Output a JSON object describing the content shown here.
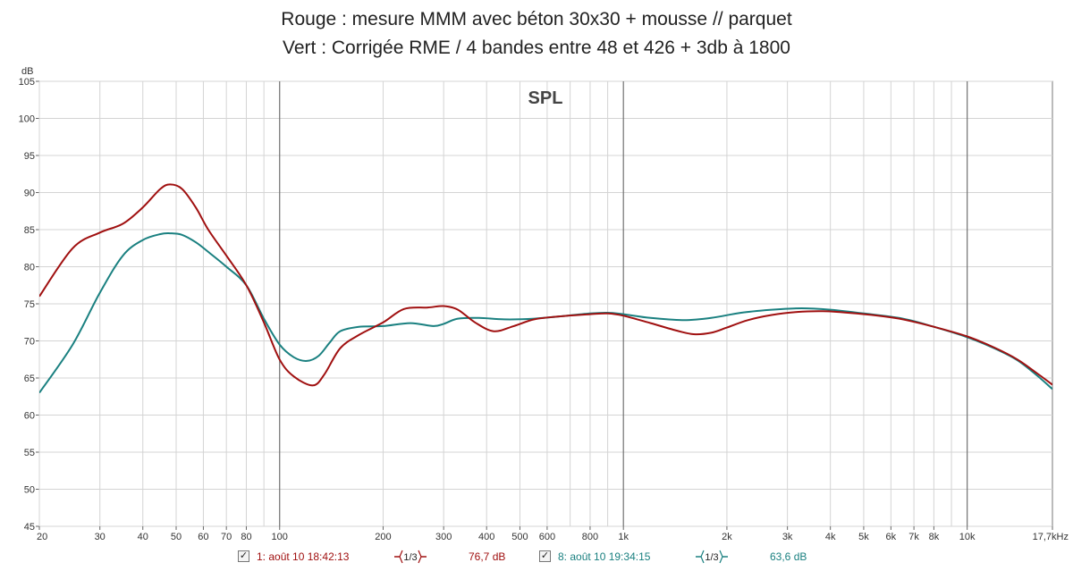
{
  "title_line1": "Rouge : mesure MMM avec béton 30x30 + mousse // parquet",
  "title_line2": "Vert : Corrigée RME / 4 bandes entre 48 et 426 + 3db à 1800",
  "chart_data": {
    "type": "line",
    "plot_label": "SPL",
    "ylabel": "dB",
    "xscale": "log",
    "xlim": [
      20,
      17700
    ],
    "ylim": [
      45,
      105
    ],
    "y_ticks": [
      "45",
      "50",
      "55",
      "60",
      "65",
      "70",
      "75",
      "80",
      "85",
      "90",
      "95",
      "100",
      "105"
    ],
    "x_ticks": [
      {
        "v": 20,
        "label": "20"
      },
      {
        "v": 30,
        "label": "30"
      },
      {
        "v": 40,
        "label": "40"
      },
      {
        "v": 50,
        "label": "50"
      },
      {
        "v": 60,
        "label": "60"
      },
      {
        "v": 70,
        "label": "70"
      },
      {
        "v": 80,
        "label": "80"
      },
      {
        "v": 100,
        "label": "100"
      },
      {
        "v": 200,
        "label": "200"
      },
      {
        "v": 300,
        "label": "300"
      },
      {
        "v": 400,
        "label": "400"
      },
      {
        "v": 500,
        "label": "500"
      },
      {
        "v": 600,
        "label": "600"
      },
      {
        "v": 800,
        "label": "800"
      },
      {
        "v": 1000,
        "label": "1k"
      },
      {
        "v": 2000,
        "label": "2k"
      },
      {
        "v": 3000,
        "label": "3k"
      },
      {
        "v": 4000,
        "label": "4k"
      },
      {
        "v": 5000,
        "label": "5k"
      },
      {
        "v": 6000,
        "label": "6k"
      },
      {
        "v": 7000,
        "label": "7k"
      },
      {
        "v": 8000,
        "label": "8k"
      },
      {
        "v": 10000,
        "label": "10k"
      },
      {
        "v": 17700,
        "label": "17,7kHz"
      }
    ],
    "series": [
      {
        "name": "1: août 10 18:42:13",
        "color": "#a01010",
        "smoothing": "1/3",
        "level": "76,7 dB",
        "points": [
          [
            20,
            76
          ],
          [
            25,
            82.5
          ],
          [
            30,
            84.6
          ],
          [
            35,
            85.8
          ],
          [
            40,
            88
          ],
          [
            45,
            90.5
          ],
          [
            48,
            91.1
          ],
          [
            52,
            90.5
          ],
          [
            57,
            88
          ],
          [
            62,
            85
          ],
          [
            70,
            81.5
          ],
          [
            80,
            77.5
          ],
          [
            90,
            72.5
          ],
          [
            100,
            67.5
          ],
          [
            110,
            65.2
          ],
          [
            125,
            64
          ],
          [
            135,
            65.5
          ],
          [
            150,
            69
          ],
          [
            170,
            70.8
          ],
          [
            200,
            72.5
          ],
          [
            230,
            74.3
          ],
          [
            270,
            74.5
          ],
          [
            300,
            74.7
          ],
          [
            330,
            74.2
          ],
          [
            370,
            72.5
          ],
          [
            420,
            71.3
          ],
          [
            480,
            72
          ],
          [
            550,
            72.9
          ],
          [
            650,
            73.3
          ],
          [
            800,
            73.6
          ],
          [
            900,
            73.7
          ],
          [
            1000,
            73.4
          ],
          [
            1200,
            72.4
          ],
          [
            1400,
            71.5
          ],
          [
            1600,
            70.9
          ],
          [
            1800,
            71.1
          ],
          [
            2000,
            71.8
          ],
          [
            2300,
            72.8
          ],
          [
            2700,
            73.5
          ],
          [
            3200,
            73.9
          ],
          [
            3800,
            74
          ],
          [
            4500,
            73.8
          ],
          [
            5500,
            73.4
          ],
          [
            6500,
            72.9
          ],
          [
            8000,
            71.9
          ],
          [
            10000,
            70.6
          ],
          [
            12000,
            69.1
          ],
          [
            14000,
            67.5
          ],
          [
            16000,
            65.6
          ],
          [
            17700,
            64.1
          ]
        ]
      },
      {
        "name": "8: août 10 19:34:15",
        "color": "#1a8080",
        "smoothing": "1/3",
        "level": "63,6 dB",
        "points": [
          [
            20,
            63
          ],
          [
            25,
            69.5
          ],
          [
            30,
            76.5
          ],
          [
            35,
            81.5
          ],
          [
            40,
            83.6
          ],
          [
            45,
            84.4
          ],
          [
            48,
            84.5
          ],
          [
            52,
            84.3
          ],
          [
            57,
            83.3
          ],
          [
            62,
            82
          ],
          [
            70,
            80
          ],
          [
            80,
            77.5
          ],
          [
            90,
            73
          ],
          [
            100,
            69.5
          ],
          [
            110,
            67.8
          ],
          [
            120,
            67.3
          ],
          [
            130,
            68
          ],
          [
            140,
            69.8
          ],
          [
            150,
            71.3
          ],
          [
            170,
            71.9
          ],
          [
            200,
            72
          ],
          [
            240,
            72.4
          ],
          [
            280,
            72
          ],
          [
            300,
            72.3
          ],
          [
            330,
            73
          ],
          [
            380,
            73.1
          ],
          [
            450,
            72.9
          ],
          [
            550,
            73
          ],
          [
            650,
            73.3
          ],
          [
            800,
            73.7
          ],
          [
            900,
            73.8
          ],
          [
            1000,
            73.6
          ],
          [
            1200,
            73.1
          ],
          [
            1500,
            72.8
          ],
          [
            1800,
            73.1
          ],
          [
            2200,
            73.8
          ],
          [
            2700,
            74.2
          ],
          [
            3300,
            74.4
          ],
          [
            4000,
            74.2
          ],
          [
            5000,
            73.7
          ],
          [
            6500,
            73
          ],
          [
            8000,
            71.9
          ],
          [
            10000,
            70.5
          ],
          [
            12000,
            69
          ],
          [
            14000,
            67.4
          ],
          [
            16000,
            65.3
          ],
          [
            17700,
            63.5
          ]
        ]
      }
    ]
  },
  "legend": [
    {
      "checked": "✓",
      "label": "1: août 10 18:42:13",
      "smoothing": "1/3",
      "level": "76,7 dB",
      "color": "#a01010"
    },
    {
      "checked": "✓",
      "label": "8: août 10 19:34:15",
      "smoothing": "1/3",
      "level": "63,6 dB",
      "color": "#1a8080"
    }
  ]
}
